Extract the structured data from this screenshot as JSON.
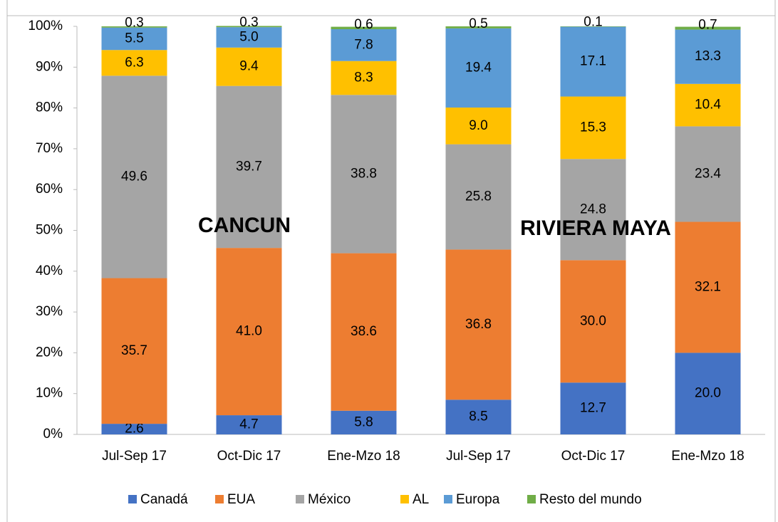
{
  "chart_data": {
    "type": "stacked_bar",
    "categories": [
      "Jul-Sep 17",
      "Oct-Dic 17",
      "Ene-Mzo 18",
      "Jul-Sep 17",
      "Oct-Dic 17",
      "Ene-Mzo 18"
    ],
    "series": [
      {
        "name": "Canadá",
        "color": "#4472c4",
        "values": [
          2.6,
          4.7,
          5.8,
          8.5,
          12.7,
          20.0
        ],
        "value_labels": [
          "2.6",
          "4.7",
          "5.8",
          "8.5",
          "12.7",
          "20.0"
        ]
      },
      {
        "name": "EUA",
        "color": "#ed7d31",
        "values": [
          35.7,
          41.0,
          38.6,
          36.8,
          30.0,
          32.1
        ],
        "value_labels": [
          "35.7",
          "41.0",
          "38.6",
          "36.8",
          "30.0",
          "32.1"
        ]
      },
      {
        "name": "México",
        "color": "#a5a5a5",
        "values": [
          49.6,
          39.7,
          38.8,
          25.8,
          24.8,
          23.4
        ],
        "value_labels": [
          "49.6",
          "39.7",
          "38.8",
          "25.8",
          "24.8",
          "23.4"
        ]
      },
      {
        "name": "AL",
        "color": "#ffc000",
        "values": [
          6.3,
          9.4,
          8.3,
          9.0,
          15.3,
          10.4
        ],
        "value_labels": [
          "6.3",
          "9.4",
          "8.3",
          "9.0",
          "15.3",
          "10.4"
        ]
      },
      {
        "name": "Europa",
        "color": "#5b9bd5",
        "values": [
          5.5,
          5.0,
          7.8,
          19.4,
          17.1,
          13.3
        ],
        "value_labels": [
          "5.5",
          "5.0",
          "7.8",
          "19.4",
          "17.1",
          "13.3"
        ]
      },
      {
        "name": "Resto del mundo",
        "color": "#70ad47",
        "values": [
          0.3,
          0.3,
          0.6,
          0.5,
          0.1,
          0.7
        ],
        "value_labels": [
          "0.3",
          "0.3",
          "0.6",
          "0.5",
          "0.1",
          "0.7"
        ]
      }
    ],
    "ylim": [
      0,
      100
    ],
    "yticks": [
      {
        "value": 0,
        "label": "0%"
      },
      {
        "value": 10,
        "label": "10%"
      },
      {
        "value": 20,
        "label": "20%"
      },
      {
        "value": 30,
        "label": "30%"
      },
      {
        "value": 40,
        "label": "40%"
      },
      {
        "value": 50,
        "label": "50%"
      },
      {
        "value": 60,
        "label": "60%"
      },
      {
        "value": 70,
        "label": "70%"
      },
      {
        "value": 80,
        "label": "80%"
      },
      {
        "value": 90,
        "label": "90%"
      },
      {
        "value": 100,
        "label": "100%"
      }
    ],
    "annotations": [
      "CANCUN",
      "RIVIERA MAYA"
    ],
    "legend": "bottom"
  }
}
